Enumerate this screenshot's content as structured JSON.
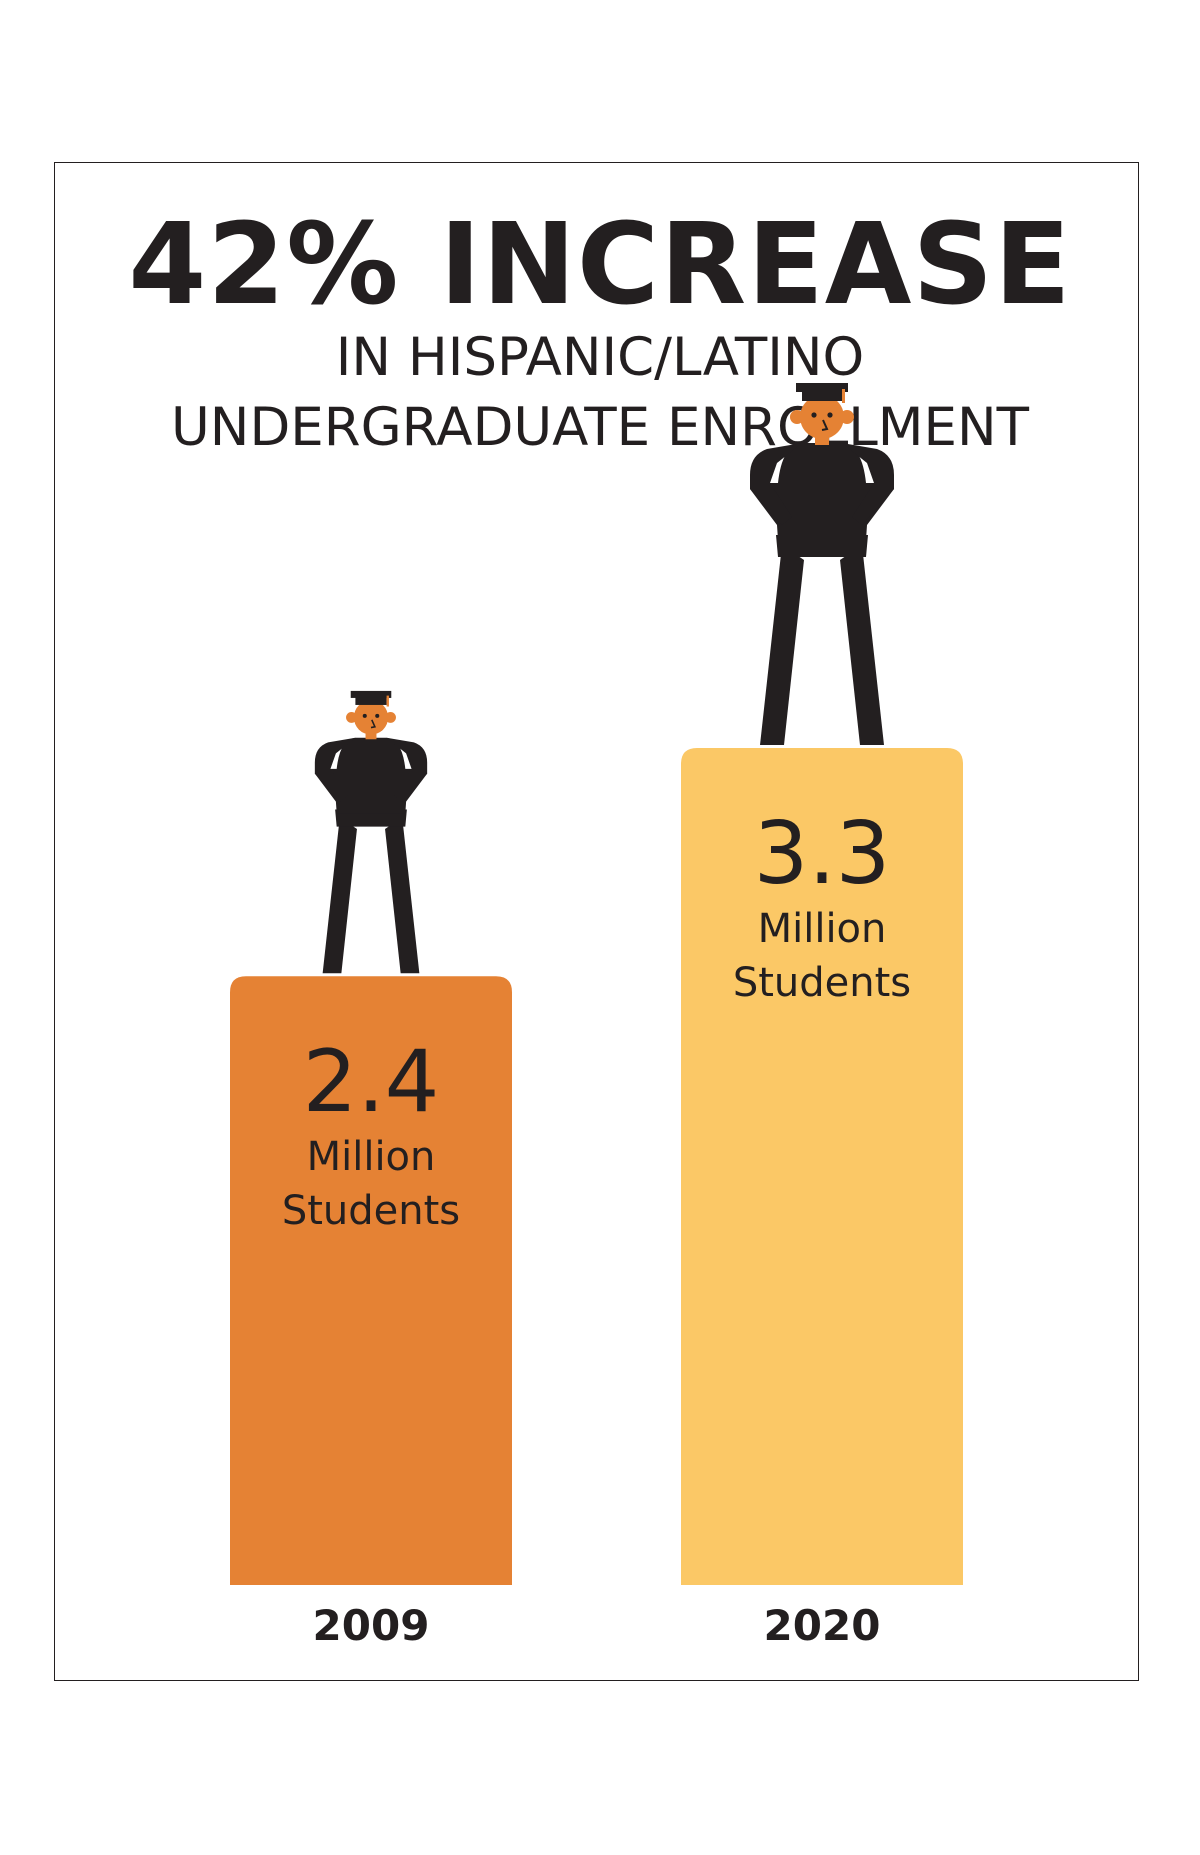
{
  "chart_data": {
    "type": "bar",
    "title": "42% INCREASE",
    "subtitle": [
      "IN HISPANIC/LATINO",
      "UNDERGRADUATE ENROLLMENT"
    ],
    "categories": [
      "2009",
      "2020"
    ],
    "values": [
      2.4,
      3.3
    ],
    "value_labels": [
      "2.4",
      "3.3"
    ],
    "unit_line1": "Million",
    "unit_line2": "Students",
    "colors": [
      "#e58234",
      "#fbc866"
    ],
    "xlabel": "",
    "ylabel": "",
    "ylim": [
      0,
      3.3
    ],
    "grid": false,
    "legend": "none"
  },
  "figure_color": "#231f20",
  "face_color": "#e58234"
}
